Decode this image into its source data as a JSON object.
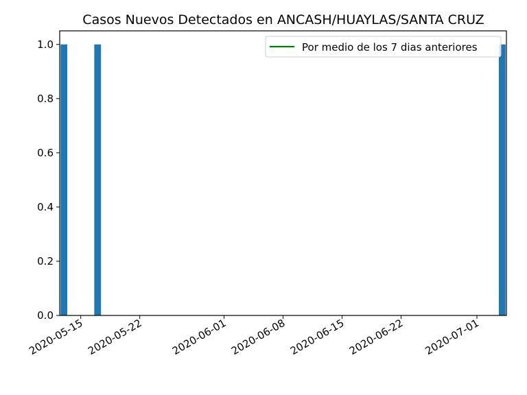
{
  "chart_data": {
    "type": "bar",
    "title": "Casos Nuevos Detectados en ANCASH/HUAYLAS/SANTA CRUZ",
    "xlabel": "",
    "ylabel": "",
    "x_start": "2020-05-13",
    "x_end": "2020-07-04",
    "ylim": [
      0,
      1.05
    ],
    "y_ticks": [
      "0.0",
      "0.2",
      "0.4",
      "0.6",
      "0.8",
      "1.0"
    ],
    "x_ticks": [
      "2020-05-15",
      "2020-05-22",
      "2020-06-01",
      "2020-06-08",
      "2020-06-15",
      "2020-06-22",
      "2020-07-01"
    ],
    "bars": [
      {
        "date": "2020-05-13",
        "value": 1
      },
      {
        "date": "2020-05-17",
        "value": 1
      },
      {
        "date": "2020-07-04",
        "value": 1
      }
    ],
    "legend": {
      "placement": "top-right",
      "entries": [
        {
          "label": "Por medio de los 7 dias anteriores",
          "color": "#008000"
        }
      ]
    },
    "bar_color": "#1f77b4",
    "grid": false
  }
}
